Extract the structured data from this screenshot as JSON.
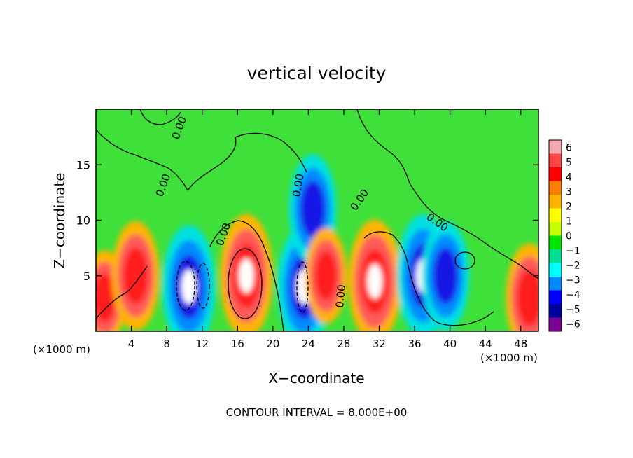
{
  "chart_data": {
    "type": "heatmap",
    "title": "vertical velocity",
    "xlabel": "X−coordinate",
    "ylabel": "Z−coordinate",
    "x_unit_left": "(×1000 m)",
    "x_unit_right": "(×1000 m)",
    "xlim": [
      0,
      50
    ],
    "ylim": [
      0,
      20
    ],
    "xticks": [
      4,
      8,
      12,
      16,
      20,
      24,
      28,
      32,
      36,
      40,
      44,
      48
    ],
    "yticks": [
      5,
      10,
      15
    ],
    "footer": "CONTOUR INTERVAL = 8.000E+00",
    "contour_label": "0.00",
    "colorbar": {
      "ticks": [
        "6",
        "5",
        "4",
        "3",
        "2",
        "1",
        "0",
        "−1",
        "−2",
        "−3",
        "−4",
        "−5",
        "−6"
      ],
      "colors": [
        "#f4a9b2",
        "#ff4646",
        "#ff0000",
        "#ff7d00",
        "#ffb400",
        "#ffff00",
        "#c8ff00",
        "#00e600",
        "#00e196",
        "#00ffff",
        "#008cff",
        "#0000ff",
        "#0000a0",
        "#7d0096"
      ]
    },
    "features": [
      {
        "x": 1,
        "z": 3,
        "w": 4,
        "kind": "updraft"
      },
      {
        "x": 4.5,
        "z": 5,
        "w": 5,
        "kind": "updraft"
      },
      {
        "x": 10.5,
        "z": 4,
        "w": -6,
        "kind": "downdraft"
      },
      {
        "x": 17,
        "z": 5,
        "w": 6,
        "kind": "updraft"
      },
      {
        "x": 23.5,
        "z": 4,
        "w": -6,
        "kind": "downdraft"
      },
      {
        "x": 24.5,
        "z": 11,
        "w": -5,
        "kind": "downdraft"
      },
      {
        "x": 26,
        "z": 5,
        "w": 4,
        "kind": "updraft"
      },
      {
        "x": 31.5,
        "z": 4.5,
        "w": 6,
        "kind": "updraft"
      },
      {
        "x": 37,
        "z": 5,
        "w": -6,
        "kind": "downdraft"
      },
      {
        "x": 39.5,
        "z": 5,
        "w": -5,
        "kind": "downdraft"
      },
      {
        "x": 49,
        "z": 3,
        "w": 5,
        "kind": "updraft"
      }
    ]
  }
}
